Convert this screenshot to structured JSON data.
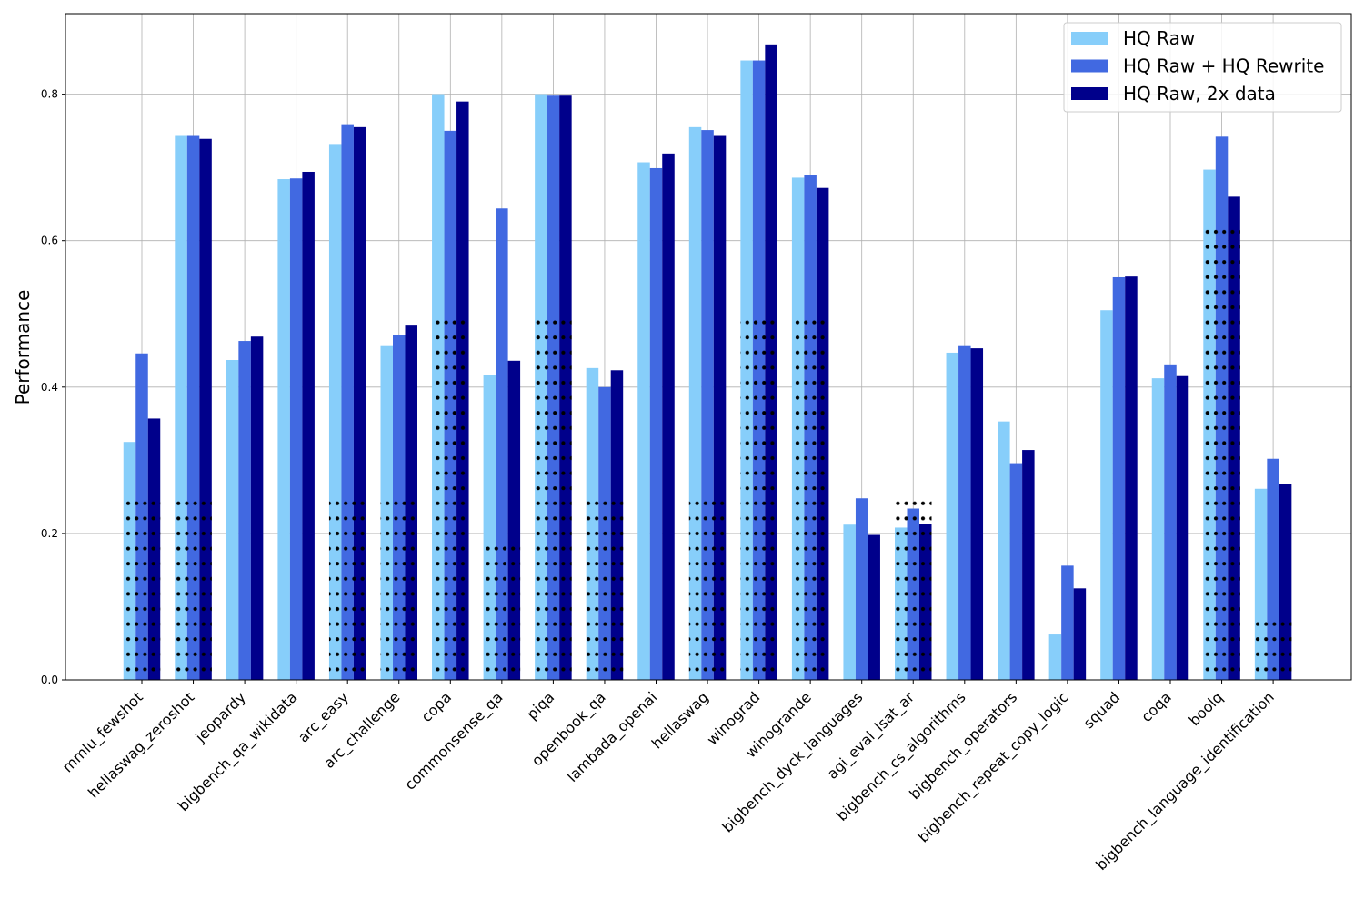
{
  "chart_data": {
    "type": "bar",
    "ylabel": "Performance",
    "xlabel": "",
    "ylim": [
      0,
      0.91
    ],
    "yticks": [
      0.0,
      0.2,
      0.4,
      0.6,
      0.8
    ],
    "ytick_labels": [
      "0.0",
      "0.2",
      "0.4",
      "0.6",
      "0.8"
    ],
    "grid": true,
    "legend_position": "top-right",
    "categories": [
      "mmlu_fewshot",
      "hellaswag_zeroshot",
      "jeopardy",
      "bigbench_qa_wikidata",
      "arc_easy",
      "arc_challenge",
      "copa",
      "commonsense_qa",
      "piqa",
      "openbook_qa",
      "lambada_openai",
      "hellaswag",
      "winograd",
      "winogrande",
      "bigbench_dyck_languages",
      "agi_eval_lsat_ar",
      "bigbench_cs_algorithms",
      "bigbench_operators",
      "bigbench_repeat_copy_logic",
      "squad",
      "coqa",
      "boolq",
      "bigbench_language_identification"
    ],
    "series": [
      {
        "name": "HQ Raw",
        "color": "#87CEFA",
        "values": [
          0.325,
          0.743,
          0.437,
          0.684,
          0.732,
          0.456,
          0.8,
          0.416,
          0.8,
          0.426,
          0.707,
          0.755,
          0.846,
          0.686,
          0.212,
          0.208,
          0.447,
          0.353,
          0.062,
          0.505,
          0.412,
          0.697,
          0.261
        ]
      },
      {
        "name": "HQ Raw + HQ Rewrite",
        "color": "#4169E1",
        "values": [
          0.446,
          0.743,
          0.463,
          0.685,
          0.759,
          0.471,
          0.75,
          0.644,
          0.798,
          0.4,
          0.699,
          0.751,
          0.846,
          0.69,
          0.248,
          0.234,
          0.456,
          0.296,
          0.156,
          0.55,
          0.431,
          0.742,
          0.302
        ]
      },
      {
        "name": "HQ Raw, 2x data",
        "color": "#00008B",
        "values": [
          0.357,
          0.739,
          0.469,
          0.694,
          0.755,
          0.484,
          0.79,
          0.436,
          0.798,
          0.423,
          0.719,
          0.743,
          0.868,
          0.672,
          0.198,
          0.213,
          0.453,
          0.314,
          0.125,
          0.551,
          0.415,
          0.66,
          0.268
        ]
      }
    ],
    "hatch_overlay": {
      "pattern": "dots",
      "color": "#000000",
      "values": [
        0.25,
        0.25,
        0,
        0,
        0.25,
        0.25,
        0.5,
        0.185,
        0.5,
        0.25,
        0,
        0.25,
        0.5,
        0.5,
        0,
        0.25,
        0,
        0,
        0,
        0,
        0,
        0.62,
        0.08
      ]
    }
  }
}
